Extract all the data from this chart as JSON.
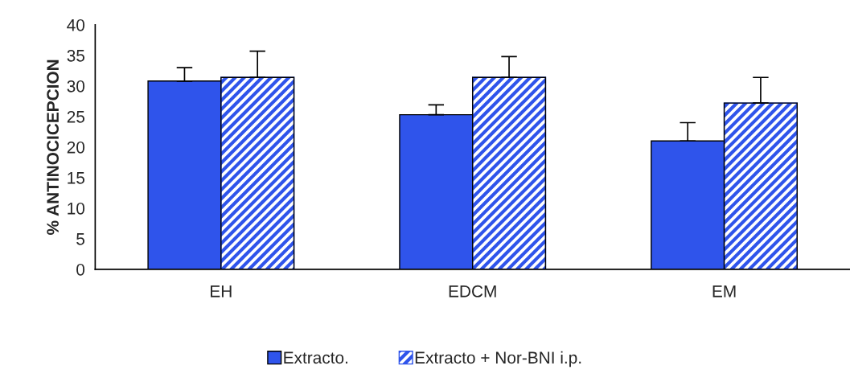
{
  "chart_data": {
    "type": "bar",
    "ylabel": "% ANTINOCICEPCION",
    "categories": [
      "EH",
      "EDCM",
      "EM"
    ],
    "series": [
      {
        "name": "Extracto.",
        "color": "#2f54eb",
        "values": [
          30.8,
          25.3,
          21.0
        ],
        "errors": [
          [
            30.8,
            33.0
          ],
          [
            25.3,
            26.9
          ],
          [
            21.0,
            24.0
          ]
        ]
      },
      {
        "name": "Extracto + Nor-BNI i.p.",
        "color": "#2f54eb",
        "values": [
          31.4,
          31.4,
          27.2
        ],
        "errors": [
          [
            31.4,
            35.7
          ],
          [
            31.4,
            34.8
          ],
          [
            27.2,
            31.4
          ]
        ]
      }
    ],
    "ylim": [
      0,
      40
    ],
    "yticks": [
      0,
      5,
      10,
      15,
      20,
      25,
      30,
      35,
      40
    ],
    "grid": false,
    "legend": "bottom"
  }
}
